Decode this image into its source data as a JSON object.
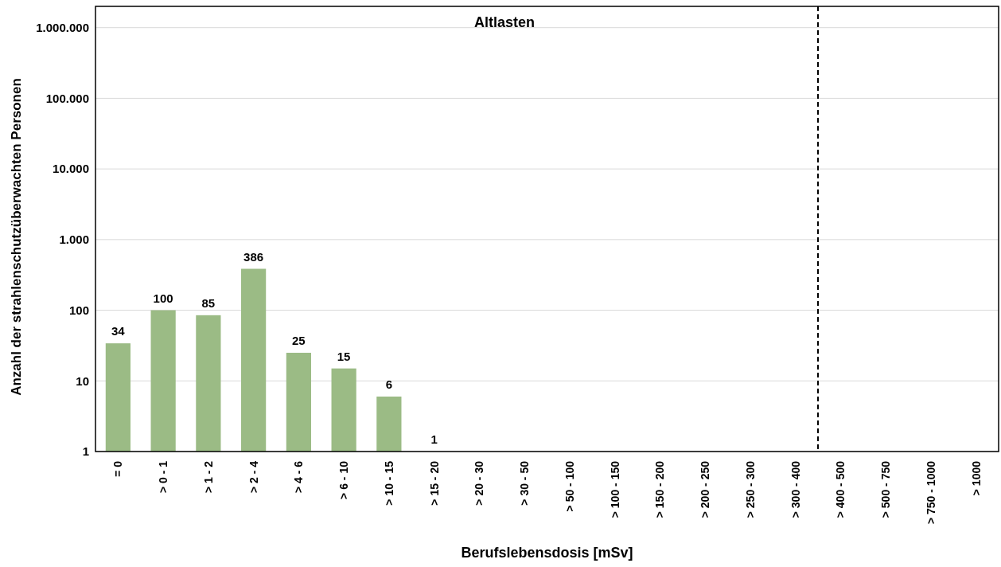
{
  "chart_data": {
    "type": "bar",
    "title": "Altlasten",
    "xlabel": "Berufslebensdosis [mSv]",
    "ylabel": "Anzahl der strahlenschutzüberwachten Personen",
    "categories": [
      "= 0",
      "> 0 - 1",
      "> 1 - 2",
      "> 2 - 4",
      "> 4 - 6",
      "> 6 - 10",
      "> 10 - 15",
      "> 15 - 20",
      "> 20 - 30",
      "> 30 - 50",
      "> 50 - 100",
      "> 100 - 150",
      "> 150 - 200",
      "> 200 - 250",
      "> 250 - 300",
      "> 300 - 400",
      "> 400 - 500",
      "> 500 - 750",
      "> 750 - 1000",
      "> 1000"
    ],
    "values": [
      34,
      100,
      85,
      386,
      25,
      15,
      6,
      1,
      null,
      null,
      null,
      null,
      null,
      null,
      null,
      null,
      null,
      null,
      null,
      null
    ],
    "color": "#9bbb85",
    "data_labels": true,
    "log": true,
    "ylim": [
      1,
      2000000
    ],
    "yticks": [
      1,
      10,
      {
        "value": 100,
        "label": "100"
      },
      {
        "value": 1000,
        "label": "1.000"
      },
      {
        "value": 10000,
        "label": "10.000"
      },
      {
        "value": 100000,
        "label": "100.000"
      },
      {
        "value": 1000000,
        "label": "1.000.000"
      }
    ],
    "grid": "y",
    "ref_lines": [
      {
        "axis": "x",
        "value": "> 400 - 500",
        "color": "#000000",
        "line_style": "dashed"
      }
    ]
  }
}
